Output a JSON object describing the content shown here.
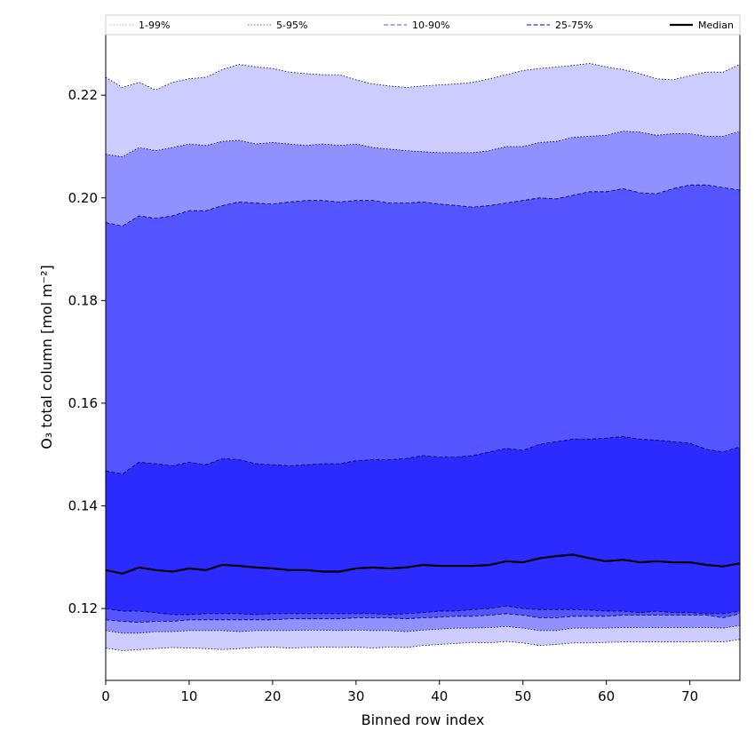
{
  "chart_data": {
    "type": "area",
    "xlabel": "Binned row index",
    "ylabel": "O₃ total column [mol m⁻²]",
    "xlim": [
      0,
      76
    ],
    "ylim": [
      0.106,
      0.2318
    ],
    "xticks": [
      0,
      10,
      20,
      30,
      40,
      50,
      60,
      70
    ],
    "yticks": [
      0.12,
      0.14,
      0.16,
      0.18,
      0.2,
      0.22
    ],
    "ytick_labels": [
      "0.12",
      "0.14",
      "0.16",
      "0.18",
      "0.20",
      "0.22"
    ],
    "grid": false,
    "legend_position": "top, above plot",
    "x": [
      0,
      2,
      4,
      6,
      8,
      10,
      12,
      14,
      16,
      18,
      20,
      22,
      24,
      26,
      28,
      30,
      32,
      34,
      36,
      38,
      40,
      42,
      44,
      46,
      48,
      50,
      52,
      54,
      56,
      58,
      60,
      62,
      64,
      66,
      68,
      70,
      72,
      74,
      76
    ],
    "bands": [
      {
        "name": "1-99%",
        "color": "#ccccff",
        "line_style": "dotted",
        "lower": [
          0.1123,
          0.1118,
          0.112,
          0.1122,
          0.1124,
          0.1123,
          0.1122,
          0.112,
          0.1122,
          0.1124,
          0.1125,
          0.1123,
          0.1124,
          0.1125,
          0.1124,
          0.1125,
          0.1123,
          0.1125,
          0.1124,
          0.1128,
          0.113,
          0.1132,
          0.1134,
          0.1133,
          0.1136,
          0.1133,
          0.1128,
          0.113,
          0.1133,
          0.1133,
          0.1134,
          0.1135,
          0.1135,
          0.1135,
          0.1135,
          0.1135,
          0.1136,
          0.1135,
          0.114
        ],
        "upper": [
          0.2235,
          0.2215,
          0.2225,
          0.221,
          0.2225,
          0.2232,
          0.2235,
          0.225,
          0.226,
          0.2255,
          0.2252,
          0.2245,
          0.2242,
          0.224,
          0.224,
          0.223,
          0.2222,
          0.2218,
          0.2215,
          0.2218,
          0.222,
          0.2222,
          0.2225,
          0.2232,
          0.224,
          0.2248,
          0.2252,
          0.2255,
          0.2258,
          0.2262,
          0.2255,
          0.225,
          0.2242,
          0.2232,
          0.223,
          0.2238,
          0.2245,
          0.2245,
          0.226
        ]
      },
      {
        "name": "5-95%",
        "color": "#9090ff",
        "line_style": "dotted",
        "lower": [
          0.1157,
          0.1152,
          0.1152,
          0.1155,
          0.1155,
          0.1157,
          0.1157,
          0.1157,
          0.1155,
          0.1157,
          0.1157,
          0.1157,
          0.1158,
          0.1158,
          0.1157,
          0.1158,
          0.1157,
          0.1157,
          0.1155,
          0.1158,
          0.116,
          0.1162,
          0.1162,
          0.1163,
          0.1165,
          0.1162,
          0.1157,
          0.1157,
          0.1162,
          0.1162,
          0.1162,
          0.1163,
          0.1163,
          0.1163,
          0.1163,
          0.1163,
          0.1163,
          0.1162,
          0.1167
        ],
        "upper": [
          0.2085,
          0.208,
          0.2098,
          0.2092,
          0.2098,
          0.2105,
          0.2102,
          0.211,
          0.2112,
          0.2105,
          0.2108,
          0.2105,
          0.2102,
          0.2105,
          0.2102,
          0.2105,
          0.2098,
          0.2095,
          0.2092,
          0.209,
          0.2088,
          0.2088,
          0.2088,
          0.2092,
          0.21,
          0.21,
          0.2108,
          0.211,
          0.2118,
          0.212,
          0.2122,
          0.213,
          0.2128,
          0.2122,
          0.2125,
          0.2125,
          0.212,
          0.212,
          0.213
        ]
      },
      {
        "name": "10-90%",
        "color": "#5555ff",
        "line_style": "dashed",
        "lower": [
          0.1178,
          0.1175,
          0.1173,
          0.1175,
          0.1175,
          0.1178,
          0.1178,
          0.1178,
          0.1178,
          0.1178,
          0.1178,
          0.118,
          0.118,
          0.118,
          0.118,
          0.1182,
          0.1182,
          0.1182,
          0.118,
          0.1182,
          0.1183,
          0.1185,
          0.1185,
          0.1187,
          0.119,
          0.1187,
          0.1182,
          0.1182,
          0.1185,
          0.1185,
          0.1185,
          0.1187,
          0.1187,
          0.1187,
          0.1187,
          0.1187,
          0.1187,
          0.1182,
          0.119
        ],
        "upper": [
          0.1952,
          0.1945,
          0.1965,
          0.196,
          0.1965,
          0.1975,
          0.1975,
          0.1985,
          0.1992,
          0.199,
          0.1988,
          0.1992,
          0.1995,
          0.1995,
          0.1992,
          0.1995,
          0.1995,
          0.199,
          0.199,
          0.1992,
          0.1988,
          0.1985,
          0.1982,
          0.1985,
          0.199,
          0.1995,
          0.2,
          0.1998,
          0.2005,
          0.2012,
          0.2012,
          0.2018,
          0.201,
          0.2008,
          0.2018,
          0.2025,
          0.2025,
          0.202,
          0.2015
        ]
      },
      {
        "name": "25-75%",
        "color": "#2b2bff",
        "line_style": "dashed",
        "lower": [
          0.12,
          0.1195,
          0.1195,
          0.1192,
          0.1188,
          0.1188,
          0.119,
          0.119,
          0.119,
          0.1188,
          0.119,
          0.119,
          0.119,
          0.119,
          0.119,
          0.119,
          0.119,
          0.1188,
          0.119,
          0.1192,
          0.1195,
          0.1195,
          0.1198,
          0.12,
          0.1205,
          0.12,
          0.1198,
          0.1198,
          0.1198,
          0.1197,
          0.1195,
          0.1195,
          0.1192,
          0.1195,
          0.1192,
          0.1192,
          0.119,
          0.119,
          0.1195
        ],
        "upper": [
          0.1468,
          0.1462,
          0.1485,
          0.1482,
          0.1478,
          0.1485,
          0.148,
          0.1492,
          0.149,
          0.1482,
          0.148,
          0.1478,
          0.148,
          0.1482,
          0.1482,
          0.1488,
          0.149,
          0.149,
          0.1492,
          0.1498,
          0.1495,
          0.1495,
          0.1498,
          0.1505,
          0.1512,
          0.1508,
          0.152,
          0.1525,
          0.153,
          0.153,
          0.1532,
          0.1535,
          0.153,
          0.1528,
          0.1525,
          0.1522,
          0.151,
          0.1505,
          0.1515
        ]
      }
    ],
    "median": {
      "name": "Median",
      "color": "#000000",
      "values": [
        0.1275,
        0.1268,
        0.128,
        0.1275,
        0.1272,
        0.1278,
        0.1275,
        0.1285,
        0.1283,
        0.128,
        0.1278,
        0.1275,
        0.1275,
        0.1272,
        0.1272,
        0.1278,
        0.128,
        0.1278,
        0.128,
        0.1285,
        0.1283,
        0.1283,
        0.1283,
        0.1285,
        0.1292,
        0.129,
        0.1298,
        0.1302,
        0.1305,
        0.1298,
        0.1292,
        0.1295,
        0.129,
        0.1292,
        0.129,
        0.129,
        0.1285,
        0.1282,
        0.1288
      ]
    }
  }
}
